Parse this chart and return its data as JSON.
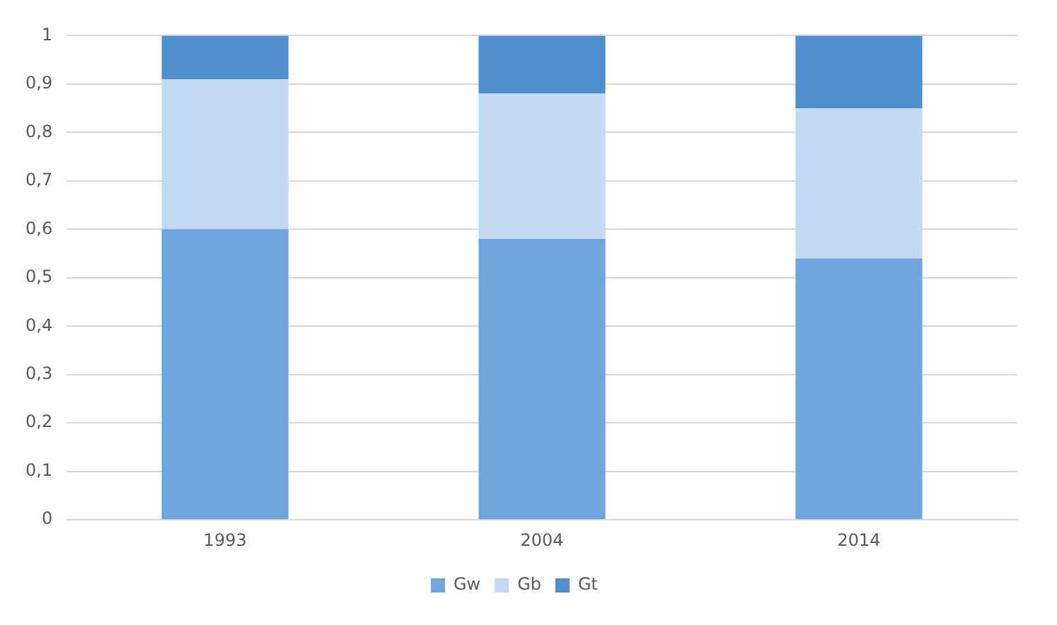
{
  "chart_data": {
    "type": "bar",
    "stacked": true,
    "categories": [
      "1993",
      "2004",
      "2014"
    ],
    "series": [
      {
        "name": "Gw",
        "color": "#6fa5dc",
        "values": [
          0.6,
          0.58,
          0.54
        ]
      },
      {
        "name": "Gb",
        "color": "#c2d9f1",
        "values": [
          0.31,
          0.3,
          0.31
        ]
      },
      {
        "name": "Gt",
        "color": "#4f8fd0",
        "values": [
          0.09,
          0.12,
          0.15
        ]
      }
    ],
    "ylim": [
      0,
      1
    ],
    "yticks": [
      0,
      {
        "value": 0.1,
        "label": "0,1"
      },
      {
        "value": 0.2,
        "label": "0,2"
      },
      {
        "value": 0.3,
        "label": "0,3"
      },
      {
        "value": 0.4,
        "label": "0,4"
      },
      {
        "value": 0.5,
        "label": "0,5"
      },
      {
        "value": 0.6,
        "label": "0,6"
      },
      {
        "value": 0.7,
        "label": "0,7"
      },
      {
        "value": 0.8,
        "label": "0,8"
      },
      {
        "value": 0.9,
        "label": "0,9"
      },
      1
    ],
    "grid": "y",
    "legend": "bottom"
  }
}
